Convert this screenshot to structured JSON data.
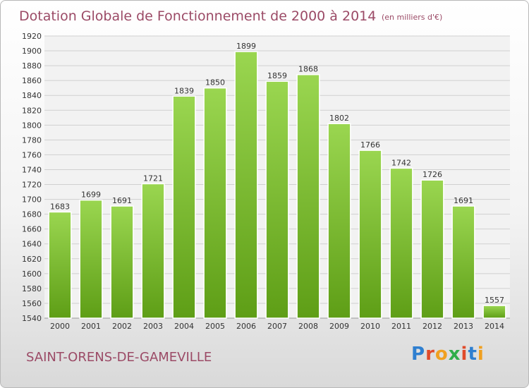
{
  "chart_data": {
    "type": "bar",
    "title": "Dotation Globale de Fonctionnement de 2000 à 2014",
    "unit_note": "(en milliers d'€)",
    "categories": [
      "2000",
      "2001",
      "2002",
      "2003",
      "2004",
      "2005",
      "2006",
      "2007",
      "2008",
      "2009",
      "2010",
      "2011",
      "2012",
      "2013",
      "2014"
    ],
    "values": [
      1683,
      1699,
      1691,
      1721,
      1839,
      1850,
      1899,
      1859,
      1868,
      1802,
      1766,
      1742,
      1726,
      1691,
      1557
    ],
    "ylim": [
      1540,
      1920
    ],
    "ytick_step": 20,
    "grid": true,
    "bar_color_top": "#9ad650",
    "bar_color_bottom": "#5e9e16"
  },
  "footer": {
    "commune": "SAINT-ORENS-DE-GAMEVILLE",
    "logo_text": "Proxiti",
    "logo_colors": [
      "#2f7fd0",
      "#e04a2a",
      "#f0a020",
      "#2fae4a",
      "#e04a2a",
      "#2f7fd0",
      "#f0a020"
    ]
  }
}
